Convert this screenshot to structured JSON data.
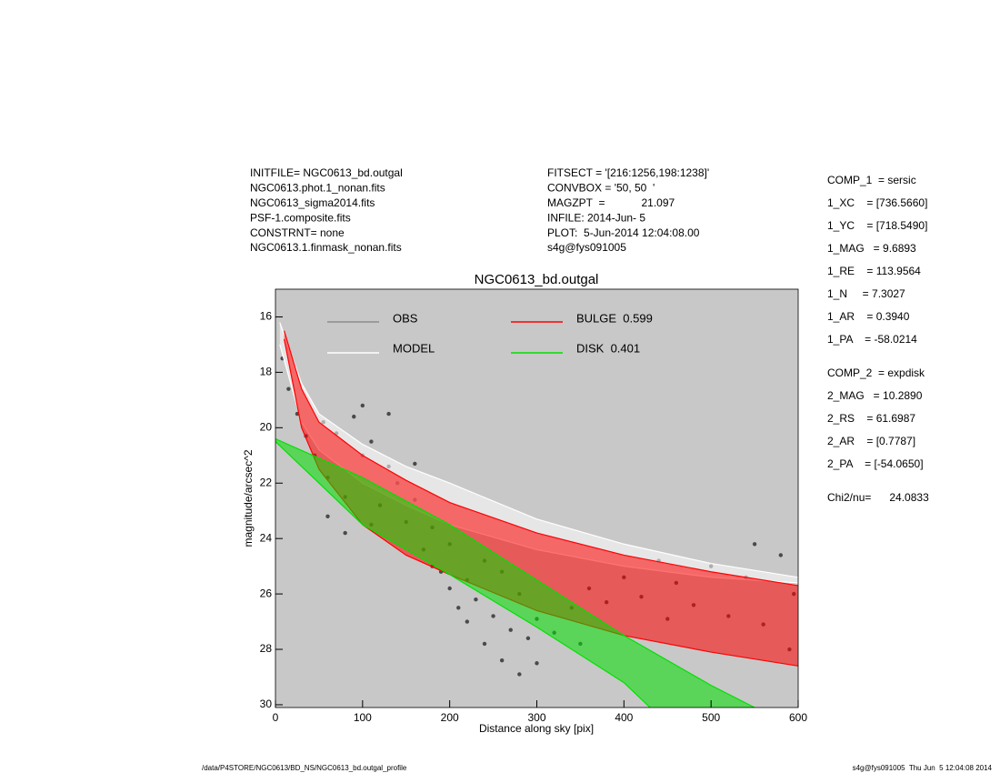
{
  "header_left": [
    "INITFILE= NGC0613_bd.outgal",
    "NGC0613.phot.1_nonan.fits",
    "NGC0613_sigma2014.fits",
    "PSF-1.composite.fits",
    "CONSTRNT= none",
    "NGC0613.1.finmask_nonan.fits"
  ],
  "header_mid": [
    "FITSECT = '[216:1256,198:1238]'",
    "CONVBOX = '50, 50  '",
    "MAGZPT  =            21.097",
    "INFILE: 2014-Jun- 5",
    "PLOT:  5-Jun-2014 12:04:08.00",
    "s4g@fys091005"
  ],
  "params": [
    [
      "COMP_1  = sersic",
      "1_XC    = [736.5660]",
      "1_YC    = [718.5490]",
      "1_MAG   = 9.6893",
      "1_RE    = 113.9564",
      "1_N     = 7.3027",
      "1_AR    = 0.3940",
      "1_PA    = -58.0214"
    ],
    [
      "COMP_2  = expdisk",
      "2_MAG   = 10.2890",
      "2_RS    = 61.6987",
      "2_AR    = [0.7787]",
      "2_PA    = [-54.0650]"
    ],
    [
      "Chi2/nu=      24.0833"
    ]
  ],
  "footer_left": "/data/P4STORE/NGC0613/BD_NS/NGC0613_bd.outgal_profile",
  "footer_right": "s4g@fys091005  Thu Jun  5 12:04:08 2014",
  "chart_data": {
    "type": "scatter",
    "title": "NGC0613_bd.outgal",
    "x_label": "Distance along sky [pix]",
    "y_label": "magnitude/arcsec^2",
    "xlim": [
      0,
      600
    ],
    "ylim": [
      30.1,
      15
    ],
    "xticks": [
      0,
      100,
      200,
      300,
      400,
      500,
      600
    ],
    "yticks": [
      16,
      18,
      20,
      22,
      24,
      26,
      28,
      30
    ],
    "background": "#c8c8c8",
    "series": [
      {
        "name": "OBS",
        "color": "#4a4a4a",
        "legend_color": "#8c8c8c",
        "kind": "points",
        "x": [
          8,
          15,
          25,
          35,
          45,
          55,
          60,
          70,
          80,
          90,
          100,
          110,
          120,
          130,
          140,
          150,
          160,
          170,
          180,
          190,
          200,
          210,
          220,
          230,
          240,
          250,
          260,
          270,
          280,
          290,
          300,
          320,
          340,
          360,
          380,
          400,
          420,
          440,
          460,
          480,
          500,
          520,
          540,
          560,
          580,
          595,
          60,
          80,
          100,
          110,
          130,
          160,
          180,
          200,
          220,
          240,
          260,
          280,
          300,
          350,
          450,
          550,
          590
        ],
        "values": [
          17.5,
          18.6,
          19.5,
          20.3,
          21,
          19.8,
          21.8,
          20.2,
          22.5,
          19.6,
          21,
          20.5,
          22.8,
          21.4,
          22,
          23.4,
          22.6,
          24.4,
          23.6,
          25.2,
          25.8,
          26.5,
          27,
          26.2,
          27.8,
          26.8,
          28.4,
          27.3,
          28.9,
          27.6,
          26.9,
          27.4,
          26.5,
          25.8,
          26.3,
          25.4,
          26.1,
          24.8,
          25.6,
          26.4,
          25,
          26.8,
          25.4,
          27.1,
          24.6,
          26,
          23.2,
          23.8,
          19.2,
          23.5,
          19.5,
          21.3,
          25,
          24.2,
          25.5,
          24.8,
          25.2,
          26,
          28.5,
          27.8,
          26.9,
          24.2,
          28
        ]
      },
      {
        "name": "MODEL",
        "color": "#ffffff",
        "legend_color": "#ffffff",
        "kind": "band",
        "upper": {
          "x": [
            5,
            30,
            50,
            100,
            150,
            200,
            300,
            400,
            500,
            600
          ],
          "values": [
            16.2,
            18.4,
            19.5,
            20.6,
            21.4,
            22.0,
            23.3,
            24.2,
            24.9,
            25.4
          ]
        },
        "lower": {
          "x": [
            5,
            30,
            50,
            100,
            150,
            200,
            300,
            400,
            500,
            600
          ],
          "values": [
            17,
            19.8,
            20.8,
            22,
            22.8,
            23.5,
            24.4,
            25.0,
            25.4,
            25.6
          ]
        }
      },
      {
        "name": "BULGE  0.599",
        "color": "#ff0000",
        "legend_color": "#ff0000",
        "kind": "band",
        "upper": {
          "x": [
            10,
            30,
            50,
            100,
            150,
            200,
            300,
            400,
            500,
            600
          ],
          "values": [
            16.5,
            18.6,
            19.8,
            21.0,
            21.9,
            22.7,
            23.8,
            24.6,
            25.2,
            25.7
          ]
        },
        "lower": {
          "x": [
            10,
            30,
            50,
            100,
            150,
            200,
            300,
            400,
            500,
            600
          ],
          "values": [
            16.8,
            20,
            21.5,
            23.5,
            24.6,
            25.3,
            26.6,
            27.5,
            28.1,
            28.6
          ]
        }
      },
      {
        "name": "DISK  0.401",
        "color": "#00e000",
        "legend_color": "#00e000",
        "kind": "band",
        "upper": {
          "x": [
            0,
            100,
            200,
            300,
            400,
            500,
            550
          ],
          "values": [
            20.4,
            21.8,
            23.5,
            25.5,
            27.5,
            29.3,
            30.1
          ]
        },
        "lower": {
          "x": [
            0,
            50,
            100,
            200,
            300,
            400,
            430
          ],
          "values": [
            20.5,
            22.0,
            23.5,
            25.3,
            27.2,
            29.2,
            30.1
          ]
        }
      }
    ]
  }
}
